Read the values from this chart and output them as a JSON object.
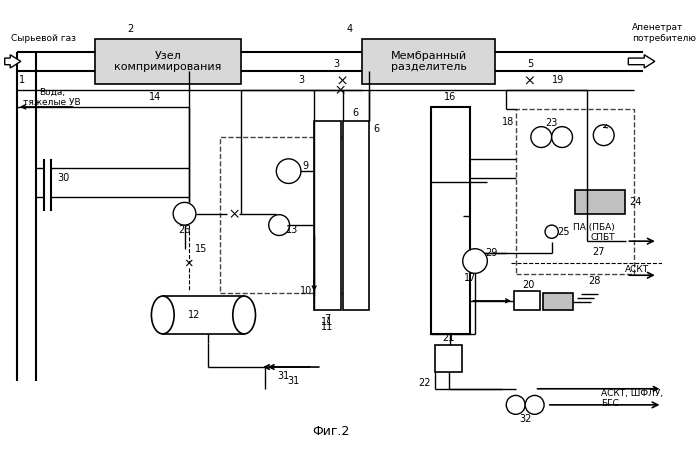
{
  "title": "Фиг.2",
  "bg_color": "#ffffff",
  "labels": {
    "raw_gas": "Сырьевой газ",
    "water_hc": "Вода,\nтяжелые УВ",
    "compression": "Узел\nкомпримирования",
    "membrane": "Мембранный\nразделитель",
    "permeate": "Апенетрат\nпотребителю",
    "pa_pba": "ПА (ПБА)\nСПБТ",
    "askt1": "АСКТ",
    "askt_shflu": "АСКТ, ШФЛУ,\nБГС"
  }
}
